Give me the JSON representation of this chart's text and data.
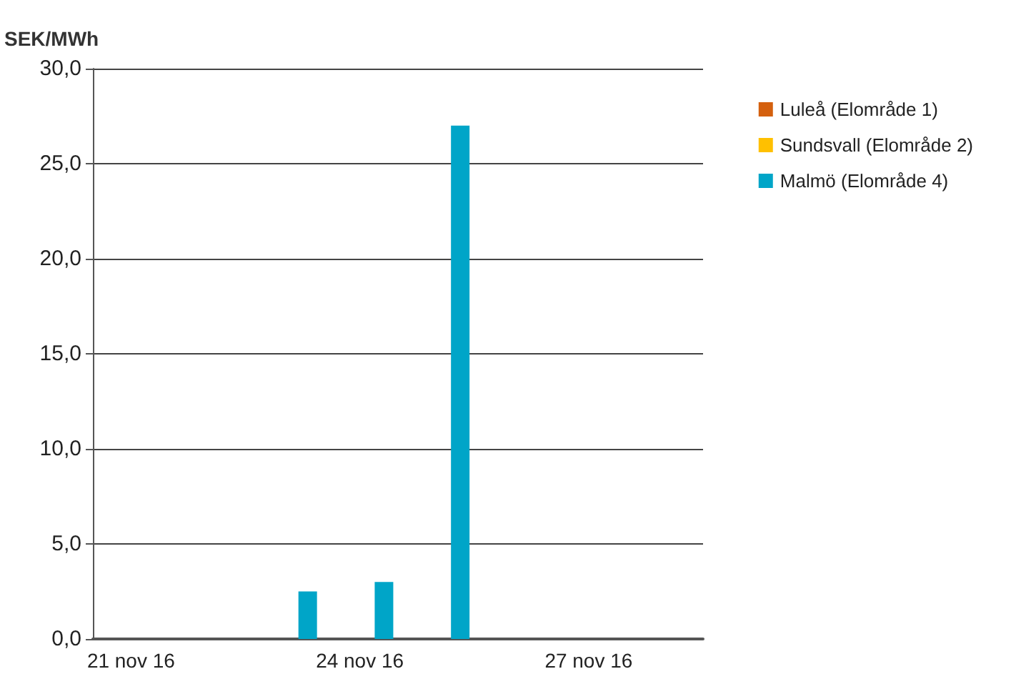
{
  "chart_data": {
    "type": "bar",
    "ylabel": "SEK/MWh",
    "categories": [
      "21 nov 16",
      null,
      null,
      "24 nov 16",
      null,
      null,
      "27 nov 16",
      null
    ],
    "series": [
      {
        "name": "Luleå (Elområde 1)",
        "color": "#d4600e",
        "values": [
          0,
          0,
          0,
          0,
          0,
          0,
          0,
          0
        ]
      },
      {
        "name": "Sundsvall (Elområde 2)",
        "color": "#ffc000",
        "values": [
          0,
          0,
          0,
          0,
          0,
          0,
          0,
          0
        ]
      },
      {
        "name": "Malmö (Elområde 4)",
        "color": "#00a5c8",
        "values": [
          0,
          0,
          2.5,
          3.0,
          27.0,
          0,
          0,
          0
        ]
      }
    ],
    "ylim": [
      0,
      30
    ],
    "yticks": [
      {
        "value": 0,
        "label": "0,0"
      },
      {
        "value": 5,
        "label": "5,0"
      },
      {
        "value": 10,
        "label": "10,0"
      },
      {
        "value": 15,
        "label": "15,0"
      },
      {
        "value": 20,
        "label": "20,0"
      },
      {
        "value": 25,
        "label": "25,0"
      },
      {
        "value": 30,
        "label": "30,0"
      }
    ],
    "grid": "y",
    "legend": "top right"
  }
}
